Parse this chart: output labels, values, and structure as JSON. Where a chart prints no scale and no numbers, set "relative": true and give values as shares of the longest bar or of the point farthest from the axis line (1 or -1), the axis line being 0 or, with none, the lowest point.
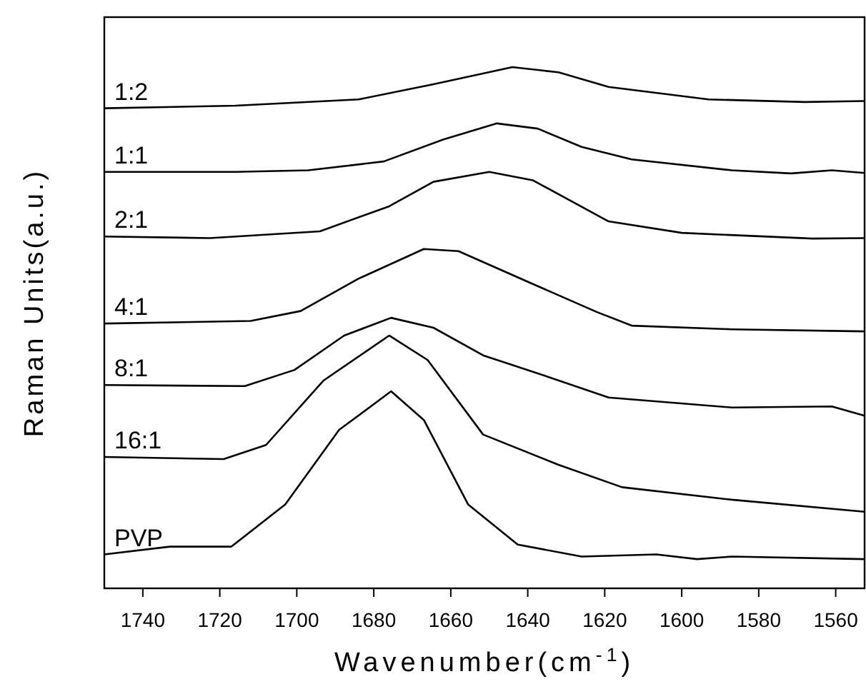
{
  "chart_data": {
    "type": "line",
    "xlabel": "Wavenumber(cm$^{-1}$)",
    "ylabel": "Raman Units(a.u.)",
    "relative": true,
    "xlim": [
      1750,
      1552.5
    ],
    "xticks": [
      1740,
      1720,
      1700,
      1680,
      1660,
      1640,
      1620,
      1600,
      1580,
      1560
    ],
    "grid": false,
    "legend": false,
    "marker": "none",
    "line_style": "solid",
    "series": [
      {
        "name": "1:2",
        "color": "#000000",
        "x": [
          1750,
          1716,
          1684,
          1664.5,
          1644,
          1632,
          1619,
          1593,
          1568,
          1552.5
        ],
        "values": [
          0.921,
          0.926,
          0.938,
          0.967,
          1.0,
          0.99,
          0.962,
          0.938,
          0.933,
          0.935
        ]
      },
      {
        "name": "1:1",
        "color": "#000000",
        "x": [
          1750,
          1716,
          1697,
          1677.4,
          1662,
          1648,
          1637.4,
          1626,
          1613,
          1587,
          1571.6,
          1561,
          1552.5
        ],
        "values": [
          0.799,
          0.799,
          0.802,
          0.819,
          0.861,
          0.892,
          0.882,
          0.847,
          0.823,
          0.802,
          0.796,
          0.802,
          0.797
        ]
      },
      {
        "name": "2:1",
        "color": "#000000",
        "x": [
          1750,
          1722.6,
          1694,
          1676,
          1664.5,
          1650,
          1638.7,
          1619,
          1600,
          1566,
          1552.5
        ],
        "values": [
          0.675,
          0.672,
          0.685,
          0.733,
          0.78,
          0.799,
          0.783,
          0.704,
          0.682,
          0.671,
          0.672
        ]
      },
      {
        "name": "4:1",
        "color": "#000000",
        "x": [
          1750,
          1712,
          1699,
          1684,
          1667,
          1658,
          1639,
          1622,
          1613,
          1587,
          1552.5
        ],
        "values": [
          0.508,
          0.513,
          0.532,
          0.594,
          0.651,
          0.647,
          0.585,
          0.53,
          0.504,
          0.497,
          0.493
        ]
      },
      {
        "name": "8:1",
        "color": "#000000",
        "x": [
          1750,
          1713.5,
          1700.6,
          1687.7,
          1675.5,
          1664.5,
          1651.6,
          1636,
          1619,
          1587,
          1561,
          1552.5
        ],
        "values": [
          0.39,
          0.388,
          0.419,
          0.485,
          0.519,
          0.5,
          0.447,
          0.409,
          0.366,
          0.347,
          0.349,
          0.331
        ]
      },
      {
        "name": "16:1",
        "color": "#000000",
        "x": [
          1750,
          1719,
          1708,
          1693,
          1676,
          1666,
          1651.6,
          1632,
          1615.5,
          1587,
          1552.5
        ],
        "values": [
          0.252,
          0.248,
          0.275,
          0.399,
          0.485,
          0.438,
          0.295,
          0.237,
          0.194,
          0.17,
          0.147
        ]
      },
      {
        "name": "PVP",
        "color": "#000000",
        "x": [
          1750,
          1733,
          1717,
          1703,
          1689,
          1675.5,
          1667,
          1655.5,
          1642.6,
          1626,
          1606.6,
          1596,
          1587,
          1552.5
        ],
        "values": [
          0.065,
          0.08,
          0.08,
          0.161,
          0.304,
          0.378,
          0.323,
          0.161,
          0.084,
          0.061,
          0.065,
          0.056,
          0.061,
          0.056
        ]
      }
    ]
  }
}
